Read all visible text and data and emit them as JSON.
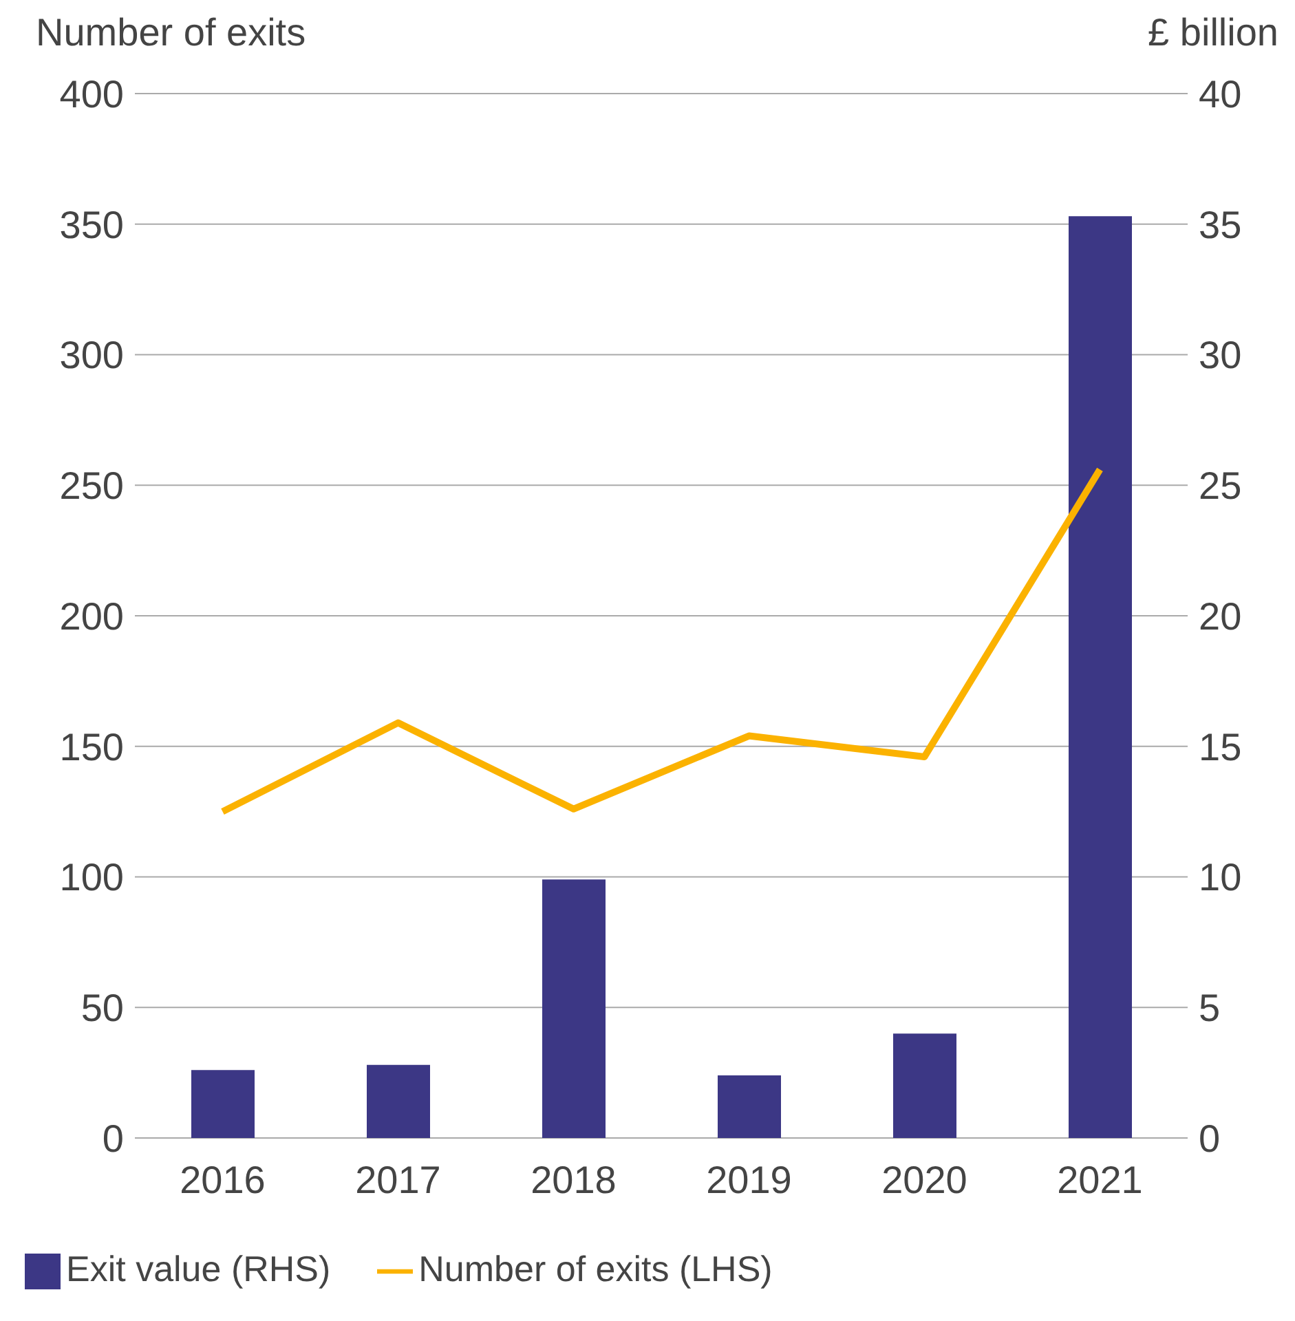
{
  "chart_data": {
    "type": "bar",
    "ylabel": "Number of exits",
    "y2label": "£ billion",
    "categories": [
      "2016",
      "2017",
      "2018",
      "2019",
      "2020",
      "2021"
    ],
    "series": [
      {
        "name": "Exit value (RHS)",
        "axis": "y2",
        "color": "#3c3785",
        "values": [
          2.6,
          2.8,
          9.9,
          2.4,
          4.0,
          35.3
        ]
      },
      {
        "name": "Number of exits (LHS)",
        "type": "line",
        "color": "#fbb200",
        "values": [
          125,
          159,
          126,
          154,
          146,
          256
        ]
      }
    ],
    "ylim": [
      0,
      400
    ],
    "yticks": [
      0,
      50,
      100,
      150,
      200,
      250,
      300,
      350,
      400
    ],
    "y2lim": [
      0,
      40
    ],
    "y2ticks": [
      0,
      5,
      10,
      15,
      20,
      25,
      30,
      35,
      40
    ],
    "grid": "y",
    "legend": "bottom left",
    "marker": "none"
  }
}
